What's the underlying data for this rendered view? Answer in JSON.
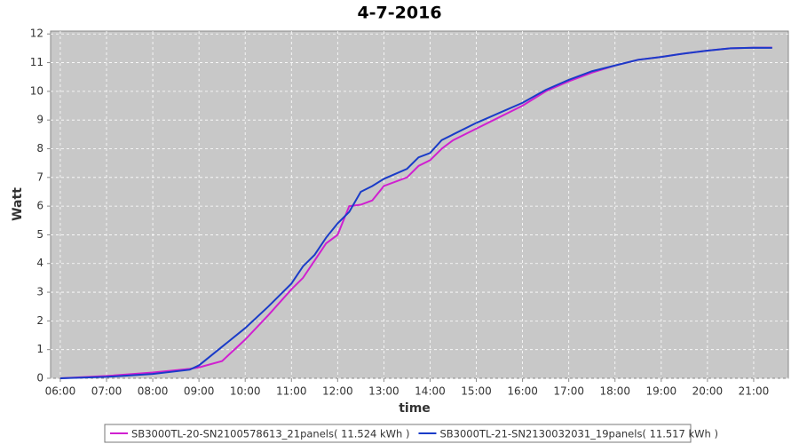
{
  "chart_data": {
    "type": "line",
    "title": "4-7-2016",
    "x_label": "time",
    "y_label": "Watt",
    "x": [
      6,
      7,
      8,
      8.8,
      9,
      9.5,
      10,
      10.5,
      11,
      11.25,
      11.5,
      11.75,
      12,
      12.25,
      12.5,
      12.75,
      13,
      13.5,
      13.75,
      14,
      14.25,
      14.5,
      15,
      15.5,
      16,
      16.5,
      17,
      17.5,
      18,
      18.5,
      19,
      19.5,
      20,
      20.5,
      21,
      21.4
    ],
    "series": [
      {
        "name": "SB3000TL-20-SN2100578613_21panels( 11.524 kWh )",
        "color": "#d020d0",
        "values": [
          0,
          0.08,
          0.2,
          0.33,
          0.38,
          0.6,
          1.35,
          2.2,
          3.1,
          3.5,
          4.1,
          4.7,
          5.0,
          6.0,
          6.05,
          6.2,
          6.7,
          7.0,
          7.4,
          7.6,
          8.0,
          8.3,
          8.7,
          9.1,
          9.5,
          10.0,
          10.35,
          10.65,
          10.9,
          11.1,
          11.2,
          11.32,
          11.42,
          11.5,
          11.52,
          11.524
        ]
      },
      {
        "name": "SB3000TL-21-SN2130032031_19panels( 11.517 kWh )",
        "color": "#1a3cc8",
        "values": [
          0,
          0.05,
          0.15,
          0.3,
          0.45,
          1.1,
          1.75,
          2.5,
          3.3,
          3.9,
          4.3,
          4.9,
          5.4,
          5.8,
          6.5,
          6.7,
          6.95,
          7.3,
          7.7,
          7.85,
          8.3,
          8.5,
          8.9,
          9.25,
          9.6,
          10.05,
          10.4,
          10.7,
          10.9,
          11.1,
          11.2,
          11.32,
          11.42,
          11.5,
          11.52,
          11.517
        ]
      }
    ],
    "xlim": [
      5.79,
      21.75
    ],
    "xticks": [
      {
        "value": 6,
        "label": "06:00"
      },
      {
        "value": 7,
        "label": "07:00"
      },
      {
        "value": 8,
        "label": "08:00"
      },
      {
        "value": 9,
        "label": "09:00"
      },
      {
        "value": 10,
        "label": "10:00"
      },
      {
        "value": 11,
        "label": "11:00"
      },
      {
        "value": 12,
        "label": "12:00"
      },
      {
        "value": 13,
        "label": "13:00"
      },
      {
        "value": 14,
        "label": "14:00"
      },
      {
        "value": 15,
        "label": "15:00"
      },
      {
        "value": 16,
        "label": "16:00"
      },
      {
        "value": 17,
        "label": "17:00"
      },
      {
        "value": 18,
        "label": "18:00"
      },
      {
        "value": 19,
        "label": "19:00"
      },
      {
        "value": 20,
        "label": "20:00"
      },
      {
        "value": 21,
        "label": "21:00"
      }
    ],
    "ylim": [
      0,
      12.1
    ],
    "yticks": [
      0,
      1,
      2,
      3,
      4,
      5,
      6,
      7,
      8,
      9,
      10,
      11,
      12
    ],
    "grid": true
  }
}
